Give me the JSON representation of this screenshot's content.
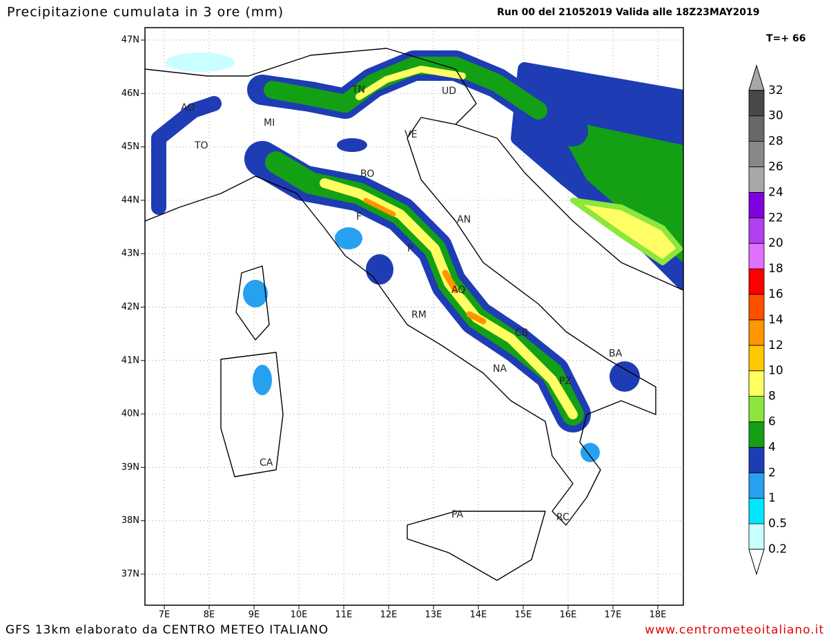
{
  "title": "Precipitazione cumulata in 3 ore (mm)",
  "run_info": "Run 00 del 21052019  Valida alle 18Z23MAY2019",
  "forecast_step": "T=+ 66",
  "lat_labels": [
    "47N",
    "46N",
    "45N",
    "44N",
    "43N",
    "42N",
    "41N",
    "40N",
    "39N",
    "38N",
    "37N"
  ],
  "lon_labels": [
    "7E",
    "8E",
    "9E",
    "10E",
    "11E",
    "12E",
    "13E",
    "14E",
    "15E",
    "16E",
    "17E",
    "18E"
  ],
  "cities": [
    "AO",
    "MI",
    "TO",
    "TN",
    "UD",
    "VE",
    "BO",
    "F",
    "AN",
    "P",
    "AQ",
    "RM",
    "CB",
    "NA",
    "PZ",
    "BA",
    "CA",
    "PA",
    "RC"
  ],
  "colorbar": {
    "levels": [
      0.2,
      0.5,
      1,
      2,
      4,
      6,
      8,
      10,
      12,
      14,
      16,
      18,
      20,
      22,
      24,
      26,
      28,
      30,
      32
    ],
    "colors": [
      "#c8ffff",
      "#00e6ff",
      "#28a0f0",
      "#1e3cb4",
      "#14a014",
      "#8ce63c",
      "#ffff64",
      "#ffc800",
      "#ff9600",
      "#ff5000",
      "#ff0000",
      "#e070ff",
      "#b040f0",
      "#8000e0",
      "#a8a8a8",
      "#888888",
      "#686868",
      "#484848"
    ],
    "over_color": "#a8a8a8",
    "under_color": "#ffffff"
  },
  "footer_left": "GFS 13km elaborato da CENTRO METEO ITALIANO",
  "footer_right": "www.centrometeoitaliano.it"
}
